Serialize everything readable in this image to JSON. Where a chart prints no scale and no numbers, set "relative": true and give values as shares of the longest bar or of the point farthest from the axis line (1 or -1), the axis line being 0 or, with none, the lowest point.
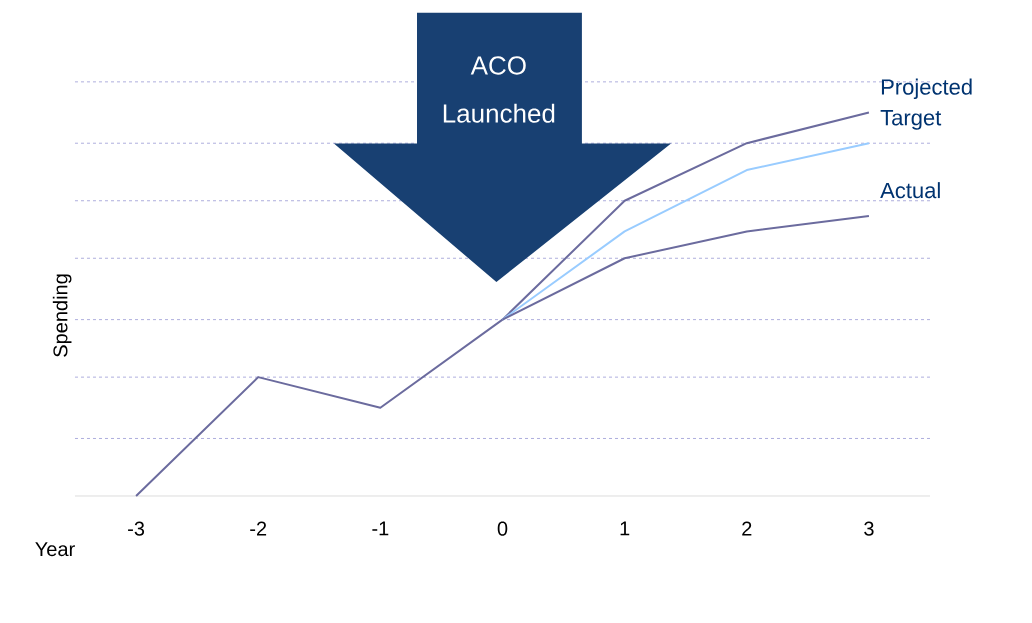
{
  "chart_data": {
    "type": "line",
    "relative": true,
    "xlabel": "Year",
    "ylabel": "Spending",
    "xlim": [
      -3.5,
      3.5
    ],
    "xticks": [
      -3,
      -2,
      -1,
      0,
      1,
      2,
      3
    ],
    "series": [
      {
        "name": "Projected",
        "color": "#6b6b9e",
        "x": [
          -3,
          -2,
          -1,
          0,
          1,
          2,
          3
        ],
        "values": [
          0,
          0.31,
          0.23,
          0.46,
          0.77,
          0.92,
          1
        ]
      },
      {
        "name": "Target",
        "color": "#99ccff",
        "x": [
          0,
          1,
          2,
          3
        ],
        "values": [
          0.46,
          0.69,
          0.85,
          0.92
        ]
      },
      {
        "name": "Actual",
        "color": "#6b6b9e",
        "x": [
          0,
          1,
          2,
          3
        ],
        "values": [
          0.46,
          0.62,
          0.69,
          0.73
        ]
      }
    ],
    "ref_lines": [
      {
        "axis": "y",
        "value": 0.15,
        "color": "#3333aa",
        "line_style": "dashed"
      },
      {
        "axis": "y",
        "value": 0.31,
        "color": "#3333aa",
        "line_style": "dashed"
      },
      {
        "axis": "y",
        "value": 0.46,
        "color": "#3333aa",
        "line_style": "dashed"
      },
      {
        "axis": "y",
        "value": 0.62,
        "color": "#3333aa",
        "line_style": "dashed"
      },
      {
        "axis": "y",
        "value": 0.77,
        "color": "#3333aa",
        "line_style": "dashed"
      },
      {
        "axis": "y",
        "value": 0.92,
        "color": "#3333aa",
        "line_style": "dashed"
      },
      {
        "axis": "y",
        "value": 1.08,
        "color": "#3333aa",
        "line_style": "dashed"
      }
    ],
    "annotations": [
      "ACO Launched"
    ]
  }
}
